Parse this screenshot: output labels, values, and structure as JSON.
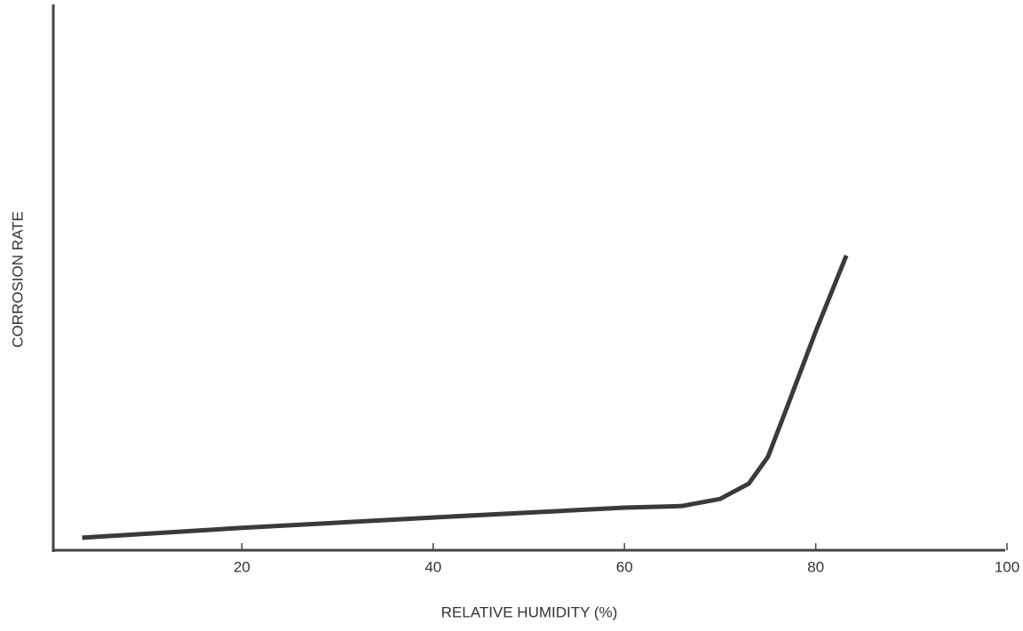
{
  "chart_data": {
    "type": "line",
    "xlabel": "RELATIVE HUMIDITY (%)",
    "ylabel": "CORROSION RATE",
    "x": [
      3.3,
      20,
      40,
      60,
      66,
      70,
      73,
      75,
      77,
      80,
      83.2
    ],
    "series": [
      {
        "color": "#3a3a3a",
        "values": [
          2.3,
          4.1,
          6.0,
          7.8,
          8.1,
          9.4,
          12.2,
          17.1,
          26.2,
          40.1,
          54.0
        ]
      }
    ],
    "xlim": [
      0,
      100
    ],
    "xticks": [
      20,
      40,
      60,
      80,
      100
    ],
    "ylim": [
      0,
      100
    ]
  }
}
